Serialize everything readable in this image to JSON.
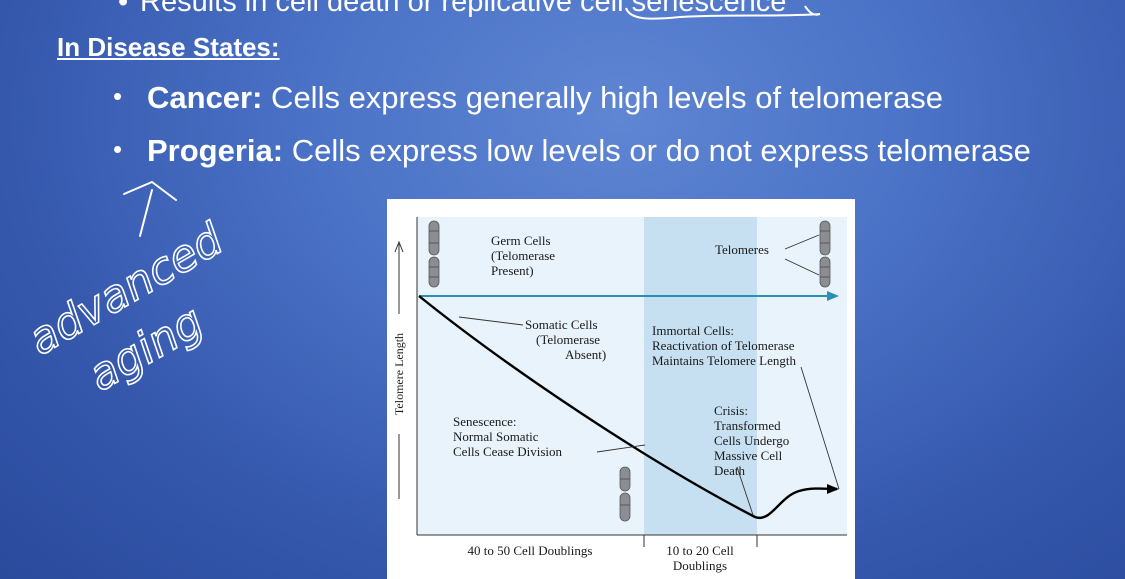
{
  "slide": {
    "cutoff_line": "Results in cell death or replicative cell senescence",
    "heading": "In Disease States:",
    "bullets": [
      {
        "term": "Cancer:",
        "text": " Cells express generally high levels of telomerase"
      },
      {
        "term": "Progeria:",
        "text": " Cells express low levels or do not express telomerase"
      }
    ],
    "bullet_char": "•",
    "annotation": {
      "line1": "advanced",
      "line2": "aging",
      "ink_color": "#ffffff"
    }
  },
  "figure": {
    "y_axis_label": "Telomere Length",
    "germ": [
      "Germ Cells",
      "(Telomerase",
      "Present)"
    ],
    "telomeres": "Telomeres",
    "somatic": [
      "Somatic Cells",
      "(Telomerase",
      "Absent)"
    ],
    "immortal": [
      "Immortal Cells:",
      "Reactivation of Telomerase",
      "Maintains Telomere Length"
    ],
    "senescence": [
      "Senescence:",
      "Normal Somatic",
      "Cells Cease Division"
    ],
    "crisis": [
      "Crisis:",
      "Transformed",
      "Cells Undergo",
      "Massive Cell",
      "Death"
    ],
    "x_label_1": "40 to 50 Cell Doublings",
    "x_label_2": [
      "10 to 20 Cell",
      "Doublings"
    ],
    "colors": {
      "panel_bg": "#e9f3fb",
      "shaded_band": "#c6e0f1",
      "germ_arrow": "#2a8fb7",
      "curve": "#000000"
    }
  }
}
